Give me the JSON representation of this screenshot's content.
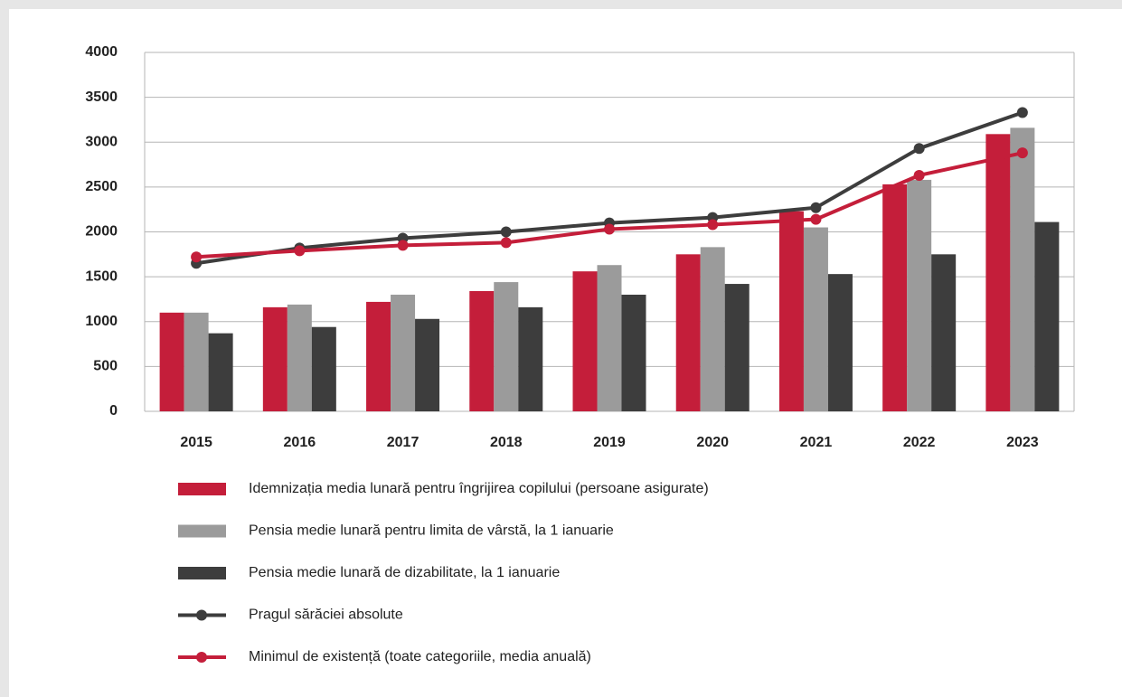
{
  "chart_data": {
    "type": "combo",
    "categories": [
      "2015",
      "2016",
      "2017",
      "2018",
      "2019",
      "2020",
      "2021",
      "2022",
      "2023"
    ],
    "series": [
      {
        "name": "Idemnizația media lunară pentru îngrijirea copilului (persoane asigurate)",
        "kind": "bar",
        "color": "#c41e3a",
        "values": [
          1100,
          1160,
          1220,
          1340,
          1560,
          1750,
          2230,
          2530,
          3090
        ]
      },
      {
        "name": "Pensia medie lunară pentru limita de vârstă, la 1 ianuarie",
        "kind": "bar",
        "color": "#9b9b9b",
        "values": [
          1100,
          1190,
          1300,
          1440,
          1630,
          1830,
          2050,
          2580,
          3160
        ]
      },
      {
        "name": "Pensia medie lunară de dizabilitate, la 1 ianuarie",
        "kind": "bar",
        "color": "#3d3d3d",
        "values": [
          870,
          940,
          1030,
          1160,
          1300,
          1420,
          1530,
          1750,
          2110
        ]
      },
      {
        "name": "Pragul sărăciei absolute",
        "kind": "line",
        "color": "#3d3d3d",
        "values": [
          1650,
          1820,
          1930,
          2000,
          2100,
          2160,
          2270,
          2930,
          3330
        ]
      },
      {
        "name": "Minimul de existență (toate categoriile, media anuală)",
        "kind": "line",
        "color": "#c41e3a",
        "values": [
          1720,
          1790,
          1850,
          1880,
          2030,
          2080,
          2140,
          2630,
          2880
        ]
      }
    ],
    "ylim": [
      0,
      4000
    ],
    "yticks": [
      0,
      500,
      1000,
      1500,
      2000,
      2500,
      3000,
      3500,
      4000
    ],
    "grid": true
  }
}
